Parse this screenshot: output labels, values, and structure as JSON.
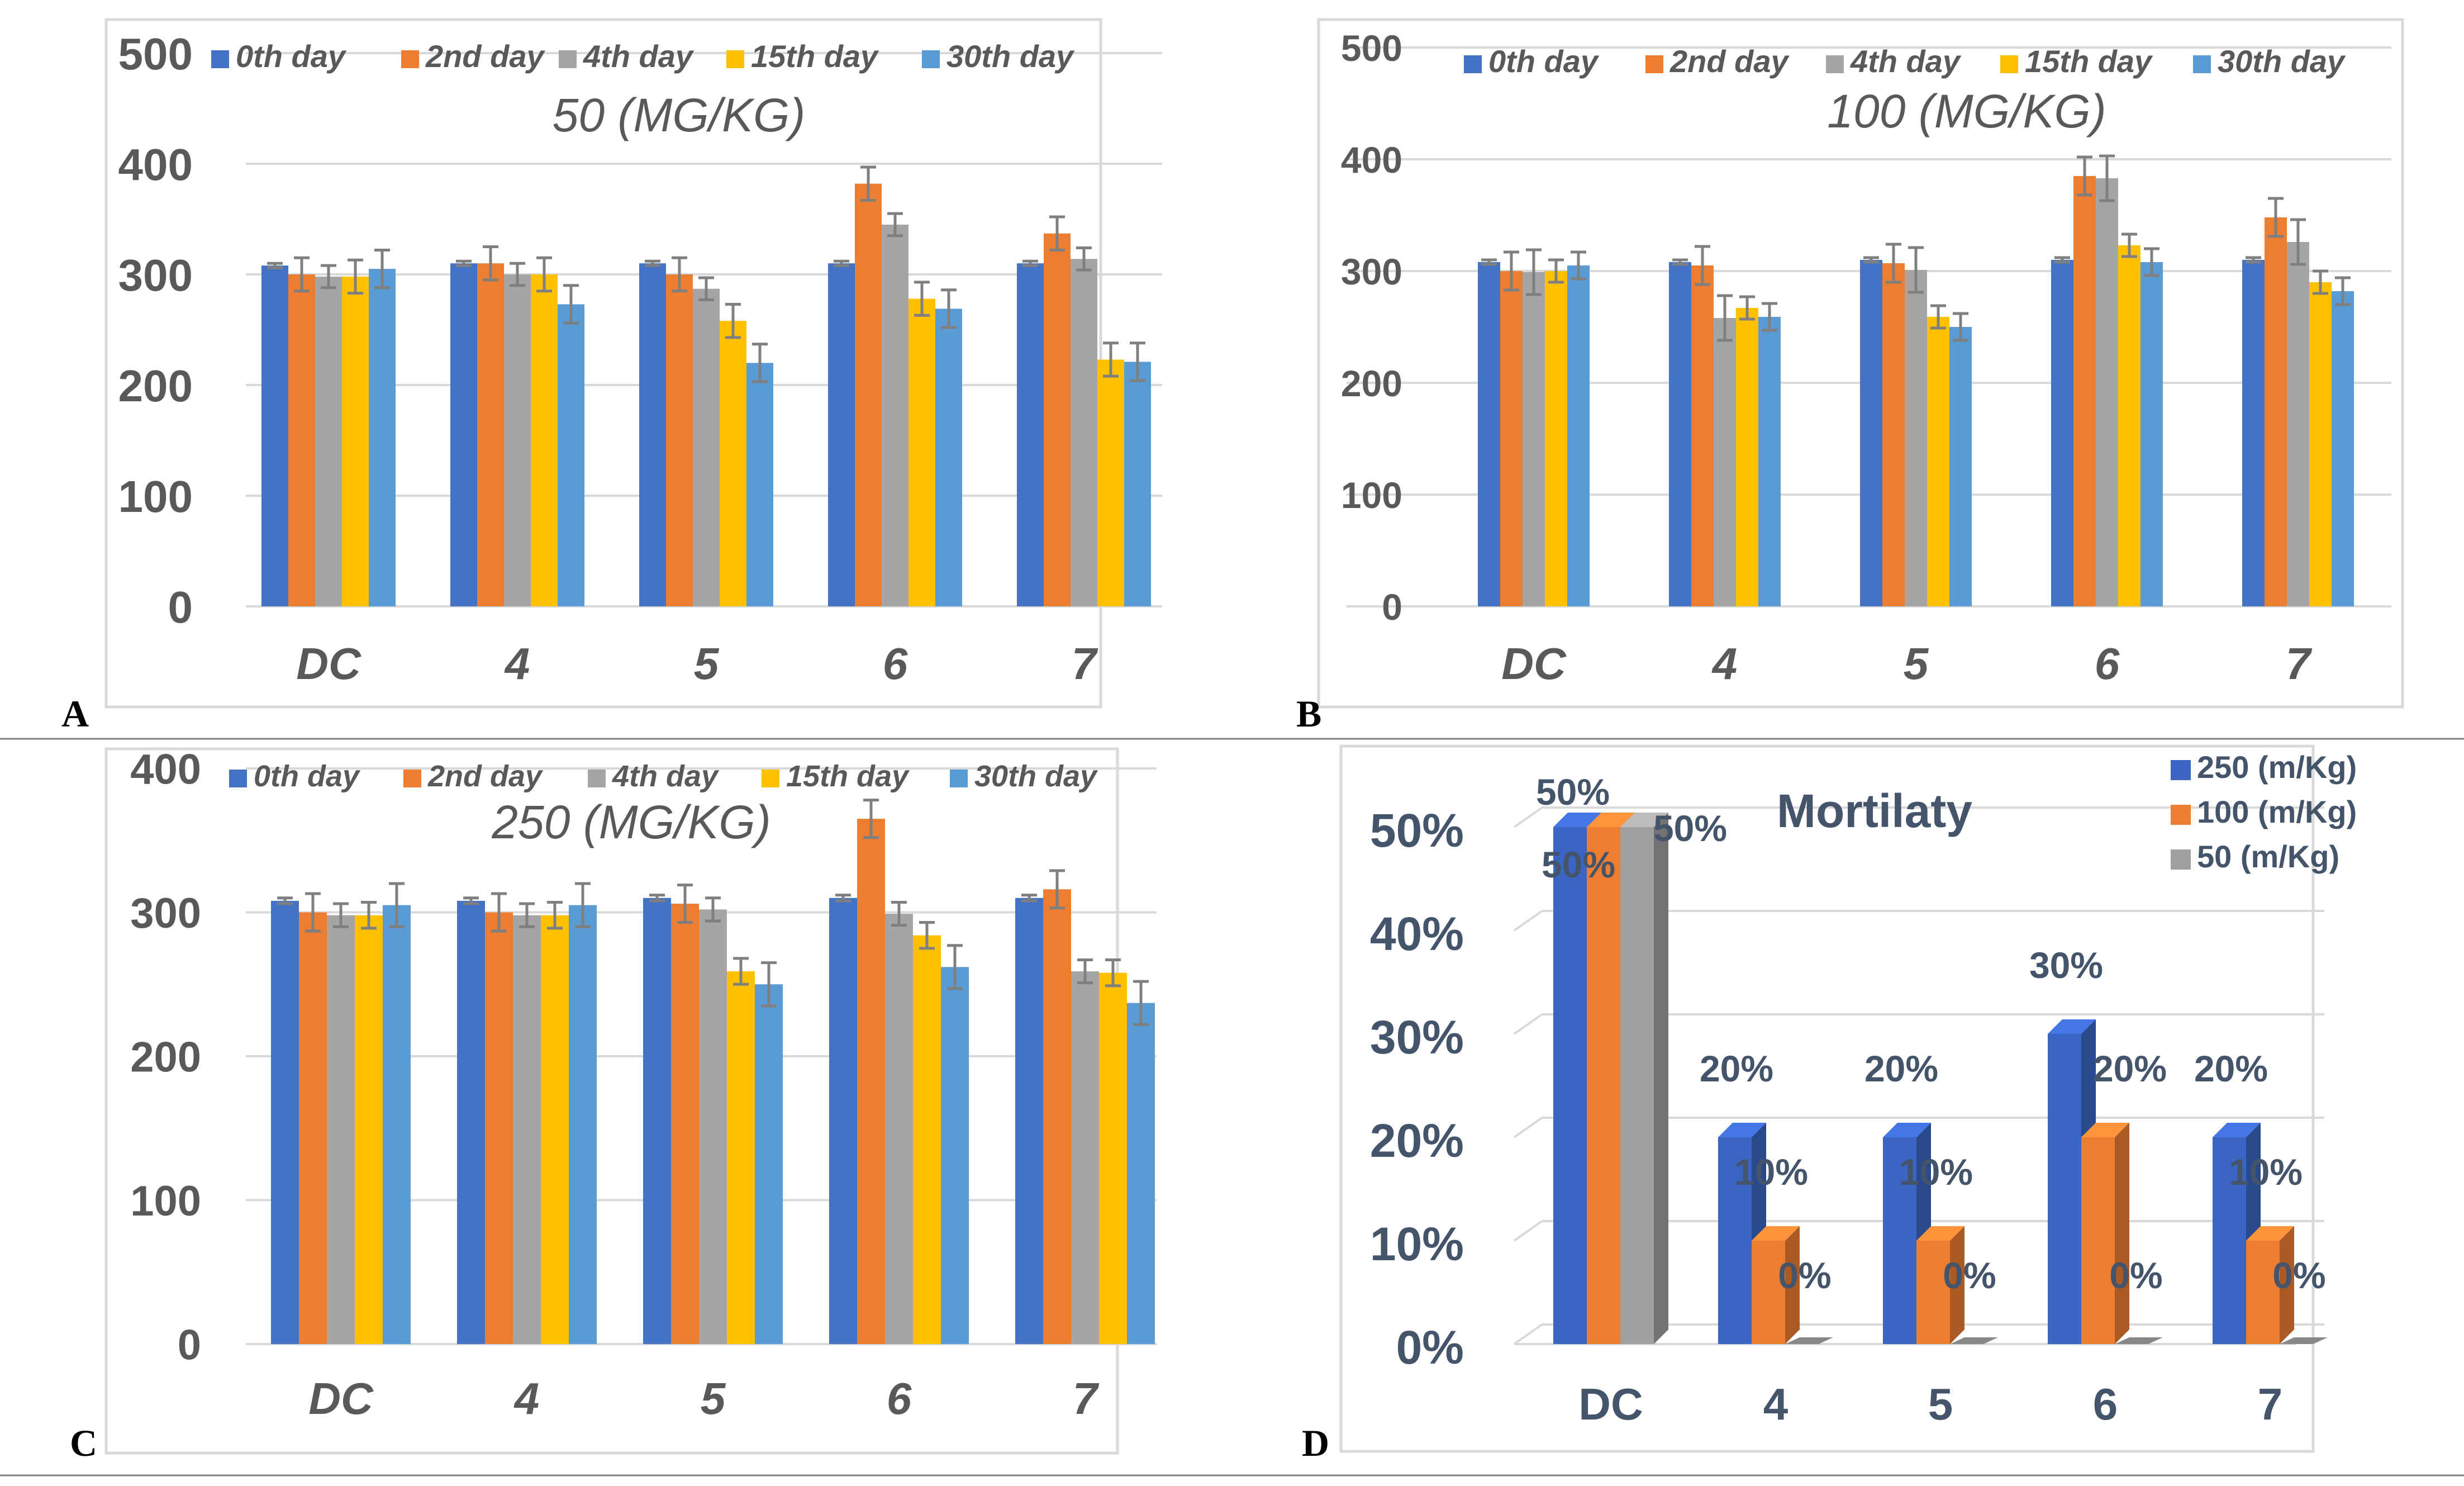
{
  "chart_data": [
    {
      "type": "bar",
      "panel_label": "A",
      "title": "50 (MG/KG)",
      "categories": [
        "DC",
        "4",
        "5",
        "6",
        "7"
      ],
      "ylim": [
        0,
        500
      ],
      "yticks": [
        "0",
        "100",
        "200",
        "300",
        "400",
        "500"
      ],
      "legend": [
        "0th day",
        "2nd day",
        "4th day",
        "15th day",
        "30th day"
      ],
      "series": [
        {
          "name": "0th day",
          "values": [
            308,
            310,
            310,
            310,
            310
          ],
          "errors": [
            2,
            2,
            2,
            2,
            2
          ]
        },
        {
          "name": "2nd day",
          "values": [
            300,
            310,
            300,
            382,
            337
          ],
          "errors": [
            15,
            15,
            15,
            15,
            15
          ]
        },
        {
          "name": "4th day",
          "values": [
            298,
            300,
            287,
            345,
            314
          ],
          "errors": [
            10,
            10,
            10,
            10,
            10
          ]
        },
        {
          "name": "15th day",
          "values": [
            298,
            300,
            258,
            278,
            223
          ],
          "errors": [
            15,
            15,
            15,
            15,
            15
          ]
        },
        {
          "name": "30th day",
          "values": [
            305,
            273,
            220,
            269,
            221
          ],
          "errors": [
            17,
            17,
            17,
            17,
            17
          ]
        }
      ]
    },
    {
      "type": "bar",
      "panel_label": "B",
      "title": "100 (MG/KG)",
      "categories": [
        "DC",
        "4",
        "5",
        "6",
        "7"
      ],
      "ylim": [
        0,
        500
      ],
      "yticks": [
        "0",
        "100",
        "200",
        "300",
        "400",
        "500"
      ],
      "legend": [
        "0th day",
        "2nd day",
        "4th day",
        "15th day",
        "30th day"
      ],
      "series": [
        {
          "name": "0th day",
          "values": [
            308,
            308,
            310,
            310,
            310
          ],
          "errors": [
            2,
            2,
            2,
            2,
            2
          ]
        },
        {
          "name": "2nd day",
          "values": [
            300,
            305,
            307,
            385,
            348
          ],
          "errors": [
            17,
            17,
            17,
            17,
            17
          ]
        },
        {
          "name": "4th day",
          "values": [
            299,
            258,
            301,
            383,
            326
          ],
          "errors": [
            20,
            20,
            20,
            20,
            20
          ]
        },
        {
          "name": "15th day",
          "values": [
            300,
            267,
            259,
            323,
            290
          ],
          "errors": [
            10,
            10,
            10,
            10,
            10
          ]
        },
        {
          "name": "30th day",
          "values": [
            305,
            259,
            250,
            308,
            282
          ],
          "errors": [
            12,
            12,
            12,
            12,
            12
          ]
        }
      ]
    },
    {
      "type": "bar",
      "panel_label": "C",
      "title": "250 (MG/KG)",
      "categories": [
        "DC",
        "4",
        "5",
        "6",
        "7"
      ],
      "ylim": [
        0,
        400
      ],
      "yticks": [
        "0",
        "100",
        "200",
        "300",
        "400"
      ],
      "legend": [
        "0th day",
        "2nd day",
        "4th day",
        "15th day",
        "30th day"
      ],
      "series": [
        {
          "name": "0th day",
          "values": [
            308,
            308,
            310,
            310,
            310
          ],
          "errors": [
            2,
            2,
            2,
            2,
            2
          ]
        },
        {
          "name": "2nd day",
          "values": [
            300,
            300,
            306,
            365,
            316
          ],
          "errors": [
            13,
            13,
            13,
            13,
            13
          ]
        },
        {
          "name": "4th day",
          "values": [
            298,
            298,
            302,
            299,
            259
          ],
          "errors": [
            8,
            8,
            8,
            8,
            8
          ]
        },
        {
          "name": "15th day",
          "values": [
            298,
            298,
            259,
            284,
            258
          ],
          "errors": [
            9,
            9,
            9,
            9,
            9
          ]
        },
        {
          "name": "30th day",
          "values": [
            305,
            305,
            250,
            262,
            237
          ],
          "errors": [
            15,
            15,
            15,
            15,
            15
          ]
        }
      ]
    },
    {
      "type": "bar",
      "subtype": "3d-bar",
      "panel_label": "D",
      "title": "Mortilaty",
      "categories": [
        "DC",
        "4",
        "5",
        "6",
        "7"
      ],
      "ylim": [
        0,
        50
      ],
      "yticks": [
        "0%",
        "10%",
        "20%",
        "30%",
        "40%",
        "50%"
      ],
      "legend": [
        "250 (m/Kg)",
        "100 (m/Kg)",
        "50 (m/Kg)"
      ],
      "series": [
        {
          "name": "250 (m/Kg)",
          "values": [
            50,
            20,
            20,
            30,
            20
          ],
          "labels": [
            "50%",
            "20%",
            "20%",
            "30%",
            "20%"
          ]
        },
        {
          "name": "100 (m/Kg)",
          "values": [
            50,
            10,
            10,
            20,
            10
          ],
          "labels": [
            "50%",
            "10%",
            "10%",
            "20%",
            "10%"
          ]
        },
        {
          "name": "50 (m/Kg)",
          "values": [
            50,
            0,
            0,
            0,
            0
          ],
          "labels": [
            "50%",
            "0%",
            "0%",
            "0%",
            "0%"
          ]
        }
      ]
    }
  ],
  "colors": {
    "bar_series": [
      "#4472C4",
      "#ED7D31",
      "#A5A5A5",
      "#FFC000",
      "#5B9BD5"
    ],
    "d_series": [
      "#3A65C2",
      "#ED7D31",
      "#A0A0A0"
    ],
    "axis_text": "#595959",
    "d_text": "#44546A",
    "grid": "#D9D9D9",
    "frame": "#D9D9D9",
    "divider": "#7F7F7F",
    "error_bar": "#7F7F7F"
  }
}
